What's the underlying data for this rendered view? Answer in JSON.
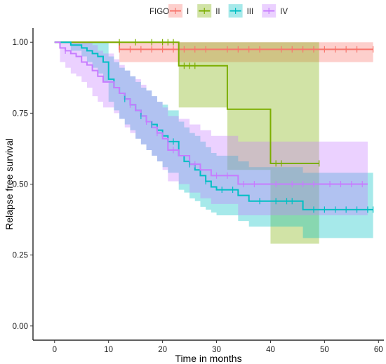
{
  "chart_data": {
    "type": "line",
    "subtype": "kaplan-meier step curves with confidence bands",
    "xlabel": "Time in months",
    "ylabel": "Relapse free survival",
    "xlim": [
      -4,
      61
    ],
    "ylim": [
      -0.05,
      1.05
    ],
    "xticks": [
      0,
      10,
      20,
      30,
      40,
      50,
      60
    ],
    "yticks": [
      0,
      0.25,
      0.5,
      0.75,
      1.0
    ],
    "xtick_labels": [
      "0",
      "10",
      "20",
      "30",
      "40",
      "50",
      "60"
    ],
    "ytick_labels": [
      "0.00",
      "0.25",
      "0.50",
      "0.75",
      "1.00"
    ],
    "grid": false,
    "legend": {
      "title": "FIGO",
      "position": "top",
      "entries": [
        "I",
        "II",
        "III",
        "IV"
      ]
    },
    "series": [
      {
        "name": "I",
        "color": "#F8766D",
        "steps": [
          [
            0,
            1.0
          ],
          [
            12,
            0.975
          ],
          [
            59,
            0.975
          ]
        ],
        "lower": [
          [
            0,
            1.0
          ],
          [
            12,
            0.93
          ],
          [
            59,
            0.93
          ]
        ],
        "upper": [
          [
            0,
            1.0
          ],
          [
            12,
            1.0
          ],
          [
            59,
            1.0
          ]
        ],
        "censors": [
          12,
          14,
          16,
          18,
          20,
          22,
          24,
          26,
          28,
          32,
          34,
          36,
          38,
          42,
          44,
          46,
          48,
          50,
          52,
          54,
          56,
          59
        ]
      },
      {
        "name": "II",
        "color": "#7CAE00",
        "steps": [
          [
            0,
            1.0
          ],
          [
            23,
            0.917
          ],
          [
            32,
            0.764
          ],
          [
            40,
            0.573
          ],
          [
            49,
            0.573
          ]
        ],
        "lower": [
          [
            0,
            1.0
          ],
          [
            23,
            0.77
          ],
          [
            32,
            0.55
          ],
          [
            40,
            0.29
          ],
          [
            49,
            0.29
          ]
        ],
        "upper": [
          [
            0,
            1.0
          ],
          [
            23,
            1.0
          ],
          [
            32,
            1.0
          ],
          [
            40,
            1.0
          ],
          [
            49,
            1.0
          ]
        ],
        "censors": [
          12,
          15,
          18,
          20,
          21,
          22,
          24,
          25,
          26,
          41,
          42,
          49
        ]
      },
      {
        "name": "III",
        "color": "#00BFC4",
        "steps": [
          [
            0,
            1.0
          ],
          [
            3,
            0.99
          ],
          [
            5,
            0.98
          ],
          [
            6,
            0.97
          ],
          [
            7,
            0.96
          ],
          [
            8,
            0.95
          ],
          [
            9,
            0.93
          ],
          [
            10,
            0.87
          ],
          [
            11,
            0.84
          ],
          [
            12,
            0.82
          ],
          [
            13,
            0.8
          ],
          [
            14,
            0.78
          ],
          [
            15,
            0.76
          ],
          [
            16,
            0.74
          ],
          [
            17,
            0.72
          ],
          [
            18,
            0.71
          ],
          [
            19,
            0.69
          ],
          [
            20,
            0.67
          ],
          [
            21,
            0.65
          ],
          [
            23,
            0.6
          ],
          [
            24,
            0.58
          ],
          [
            25,
            0.57
          ],
          [
            26,
            0.55
          ],
          [
            27,
            0.53
          ],
          [
            28,
            0.51
          ],
          [
            29,
            0.49
          ],
          [
            30,
            0.48
          ],
          [
            34,
            0.46
          ],
          [
            36,
            0.44
          ],
          [
            46,
            0.41
          ],
          [
            59,
            0.41
          ]
        ],
        "lower": [
          [
            0,
            1.0
          ],
          [
            3,
            0.97
          ],
          [
            5,
            0.95
          ],
          [
            6,
            0.93
          ],
          [
            7,
            0.91
          ],
          [
            8,
            0.89
          ],
          [
            9,
            0.86
          ],
          [
            10,
            0.79
          ],
          [
            11,
            0.76
          ],
          [
            12,
            0.73
          ],
          [
            13,
            0.71
          ],
          [
            14,
            0.69
          ],
          [
            15,
            0.66
          ],
          [
            16,
            0.64
          ],
          [
            17,
            0.62
          ],
          [
            18,
            0.6
          ],
          [
            19,
            0.58
          ],
          [
            20,
            0.56
          ],
          [
            21,
            0.54
          ],
          [
            23,
            0.48
          ],
          [
            24,
            0.47
          ],
          [
            25,
            0.45
          ],
          [
            26,
            0.44
          ],
          [
            27,
            0.42
          ],
          [
            28,
            0.41
          ],
          [
            29,
            0.4
          ],
          [
            30,
            0.39
          ],
          [
            34,
            0.37
          ],
          [
            36,
            0.35
          ],
          [
            46,
            0.31
          ],
          [
            59,
            0.31
          ]
        ],
        "upper": [
          [
            0,
            1.0
          ],
          [
            3,
            1.0
          ],
          [
            5,
            1.0
          ],
          [
            6,
            1.0
          ],
          [
            7,
            1.0
          ],
          [
            8,
            1.0
          ],
          [
            9,
            1.0
          ],
          [
            10,
            0.95
          ],
          [
            11,
            0.93
          ],
          [
            12,
            0.91
          ],
          [
            13,
            0.9
          ],
          [
            14,
            0.88
          ],
          [
            15,
            0.86
          ],
          [
            16,
            0.84
          ],
          [
            17,
            0.83
          ],
          [
            18,
            0.81
          ],
          [
            19,
            0.79
          ],
          [
            20,
            0.78
          ],
          [
            21,
            0.76
          ],
          [
            23,
            0.72
          ],
          [
            24,
            0.7
          ],
          [
            25,
            0.68
          ],
          [
            26,
            0.67
          ],
          [
            27,
            0.65
          ],
          [
            28,
            0.63
          ],
          [
            29,
            0.61
          ],
          [
            30,
            0.6
          ],
          [
            34,
            0.58
          ],
          [
            36,
            0.56
          ],
          [
            46,
            0.54
          ],
          [
            59,
            0.54
          ]
        ],
        "censors": [
          13,
          16,
          18,
          22,
          25,
          28,
          31,
          33,
          38,
          41,
          43,
          44,
          48,
          50,
          52,
          54,
          56,
          58,
          59
        ]
      },
      {
        "name": "IV",
        "color": "#C77CFF",
        "steps": [
          [
            0,
            1.0
          ],
          [
            1,
            0.98
          ],
          [
            2,
            0.97
          ],
          [
            3,
            0.96
          ],
          [
            4,
            0.95
          ],
          [
            5,
            0.93
          ],
          [
            6,
            0.92
          ],
          [
            7,
            0.9
          ],
          [
            8,
            0.88
          ],
          [
            9,
            0.86
          ],
          [
            10,
            0.86
          ],
          [
            11,
            0.84
          ],
          [
            12,
            0.82
          ],
          [
            13,
            0.8
          ],
          [
            14,
            0.78
          ],
          [
            15,
            0.76
          ],
          [
            16,
            0.74
          ],
          [
            17,
            0.72
          ],
          [
            18,
            0.7
          ],
          [
            19,
            0.68
          ],
          [
            20,
            0.66
          ],
          [
            21,
            0.62
          ],
          [
            23,
            0.6
          ],
          [
            25,
            0.57
          ],
          [
            27,
            0.55
          ],
          [
            29,
            0.53
          ],
          [
            33,
            0.53
          ],
          [
            34,
            0.5
          ],
          [
            58,
            0.5
          ]
        ],
        "lower": [
          [
            0,
            1.0
          ],
          [
            1,
            0.93
          ],
          [
            2,
            0.91
          ],
          [
            3,
            0.89
          ],
          [
            4,
            0.88
          ],
          [
            5,
            0.86
          ],
          [
            6,
            0.84
          ],
          [
            7,
            0.81
          ],
          [
            8,
            0.79
          ],
          [
            9,
            0.77
          ],
          [
            10,
            0.77
          ],
          [
            11,
            0.75
          ],
          [
            12,
            0.73
          ],
          [
            13,
            0.7
          ],
          [
            14,
            0.68
          ],
          [
            15,
            0.66
          ],
          [
            16,
            0.64
          ],
          [
            17,
            0.62
          ],
          [
            18,
            0.6
          ],
          [
            19,
            0.58
          ],
          [
            20,
            0.55
          ],
          [
            21,
            0.51
          ],
          [
            23,
            0.5
          ],
          [
            25,
            0.47
          ],
          [
            27,
            0.45
          ],
          [
            29,
            0.43
          ],
          [
            33,
            0.43
          ],
          [
            34,
            0.39
          ],
          [
            58,
            0.39
          ]
        ],
        "upper": [
          [
            0,
            1.0
          ],
          [
            1,
            1.0
          ],
          [
            2,
            1.0
          ],
          [
            3,
            1.0
          ],
          [
            4,
            1.0
          ],
          [
            5,
            1.0
          ],
          [
            6,
            1.0
          ],
          [
            7,
            0.99
          ],
          [
            8,
            0.97
          ],
          [
            9,
            0.96
          ],
          [
            10,
            0.96
          ],
          [
            11,
            0.94
          ],
          [
            12,
            0.92
          ],
          [
            13,
            0.9
          ],
          [
            14,
            0.88
          ],
          [
            15,
            0.87
          ],
          [
            16,
            0.85
          ],
          [
            17,
            0.83
          ],
          [
            18,
            0.81
          ],
          [
            19,
            0.79
          ],
          [
            20,
            0.77
          ],
          [
            21,
            0.74
          ],
          [
            23,
            0.73
          ],
          [
            25,
            0.71
          ],
          [
            27,
            0.69
          ],
          [
            29,
            0.67
          ],
          [
            33,
            0.67
          ],
          [
            34,
            0.65
          ],
          [
            58,
            0.65
          ]
        ],
        "censors": [
          2,
          14,
          17,
          19,
          22,
          26,
          30,
          32,
          35,
          37,
          41,
          44,
          46,
          48,
          51,
          53,
          55,
          57
        ]
      }
    ]
  }
}
